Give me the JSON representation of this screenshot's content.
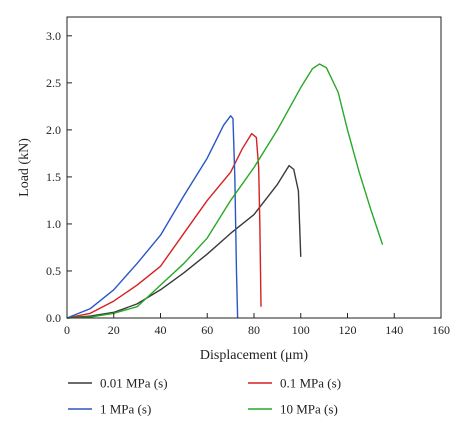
{
  "chart_data": {
    "type": "line",
    "title": "",
    "xlabel": "Displacement (μm)",
    "ylabel": "Load (kN)",
    "xlim": [
      0,
      160
    ],
    "ylim": [
      0,
      3.2
    ],
    "xticks": [
      0,
      20,
      40,
      60,
      80,
      100,
      120,
      140,
      160
    ],
    "yticks": [
      0.0,
      0.5,
      1.0,
      1.5,
      2.0,
      2.5,
      3.0
    ],
    "xtick_labels": [
      "0",
      "20",
      "40",
      "60",
      "80",
      "100",
      "120",
      "140",
      "160"
    ],
    "ytick_labels": [
      "0.0",
      "0.5",
      "1.0",
      "1.5",
      "2.0",
      "2.5",
      "3.0"
    ],
    "grid": false,
    "legend_position": "bottom",
    "series": [
      {
        "name": "0.01 MPa (s)",
        "color": "#3a3a3a",
        "points": [
          [
            0,
            0
          ],
          [
            10,
            0.02
          ],
          [
            20,
            0.06
          ],
          [
            30,
            0.15
          ],
          [
            40,
            0.3
          ],
          [
            50,
            0.48
          ],
          [
            60,
            0.68
          ],
          [
            70,
            0.9
          ],
          [
            80,
            1.1
          ],
          [
            90,
            1.42
          ],
          [
            95,
            1.62
          ],
          [
            97,
            1.58
          ],
          [
            99,
            1.35
          ],
          [
            99.5,
            1.0
          ],
          [
            100,
            0.65
          ]
        ]
      },
      {
        "name": "0.1 MPa (s)",
        "color": "#d62020",
        "points": [
          [
            0,
            0
          ],
          [
            10,
            0.05
          ],
          [
            20,
            0.18
          ],
          [
            30,
            0.35
          ],
          [
            40,
            0.55
          ],
          [
            50,
            0.9
          ],
          [
            60,
            1.25
          ],
          [
            70,
            1.55
          ],
          [
            75,
            1.8
          ],
          [
            79,
            1.96
          ],
          [
            81,
            1.92
          ],
          [
            82,
            1.6
          ],
          [
            82.5,
            1.0
          ],
          [
            83,
            0.12
          ]
        ]
      },
      {
        "name": "1 MPa (s)",
        "color": "#2a56c6",
        "points": [
          [
            0,
            0
          ],
          [
            10,
            0.1
          ],
          [
            20,
            0.3
          ],
          [
            30,
            0.58
          ],
          [
            40,
            0.88
          ],
          [
            50,
            1.3
          ],
          [
            60,
            1.7
          ],
          [
            67,
            2.05
          ],
          [
            70,
            2.15
          ],
          [
            71,
            2.12
          ],
          [
            71.8,
            1.5
          ],
          [
            72.5,
            0.5
          ],
          [
            73,
            0
          ]
        ]
      },
      {
        "name": "10 MPa (s)",
        "color": "#28a828",
        "points": [
          [
            0,
            0
          ],
          [
            10,
            0.01
          ],
          [
            20,
            0.05
          ],
          [
            30,
            0.12
          ],
          [
            40,
            0.35
          ],
          [
            50,
            0.58
          ],
          [
            60,
            0.85
          ],
          [
            70,
            1.25
          ],
          [
            80,
            1.6
          ],
          [
            90,
            2.0
          ],
          [
            100,
            2.45
          ],
          [
            105,
            2.65
          ],
          [
            108,
            2.7
          ],
          [
            111,
            2.66
          ],
          [
            116,
            2.4
          ],
          [
            120,
            2.0
          ],
          [
            125,
            1.55
          ],
          [
            130,
            1.15
          ],
          [
            135,
            0.78
          ]
        ]
      }
    ]
  }
}
